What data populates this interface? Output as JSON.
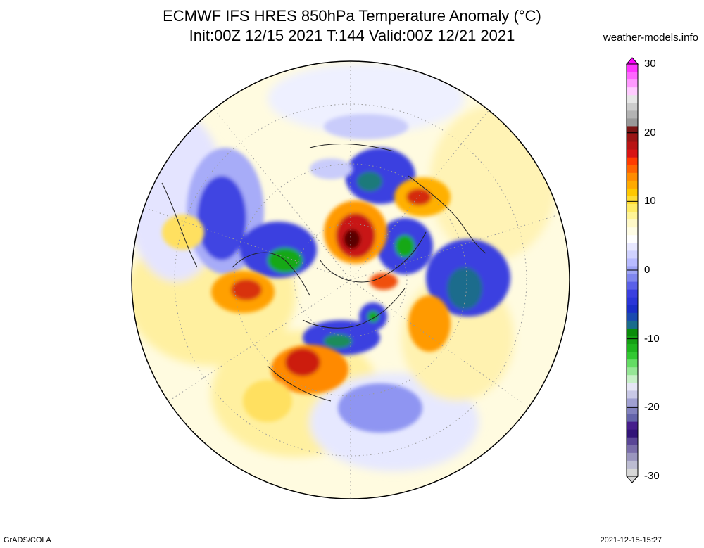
{
  "header": {
    "title_line1": "ECMWF IFS HRES 850hPa Temperature Anomaly (°C)",
    "title_line2": "Init:00Z 12/15 2021 T:144 Valid:00Z 12/21 2021",
    "site": "weather-models.info"
  },
  "footer": {
    "left": "GrADS/COLA",
    "right": "2021-12-15-15:27"
  },
  "colorbar": {
    "labels": [
      "30",
      "20",
      "10",
      "0",
      "-10",
      "-20",
      "-30"
    ],
    "min": -30,
    "max": 30
  },
  "colors": {
    "background_land": "#fefce3",
    "warm_1": "#fff1a8",
    "warm_2": "#ffd23c",
    "warm_3": "#ff9a00",
    "warm_4": "#e8400a",
    "warm_5": "#b80a0a",
    "warm_6": "#5a0000",
    "cold_1": "#d5d8ff",
    "cold_2": "#9ea4f5",
    "cold_3": "#3a3fe0",
    "cold_4": "#1a2ec8",
    "cold_5": "#1a7a7a",
    "cold_6": "#14b814"
  }
}
